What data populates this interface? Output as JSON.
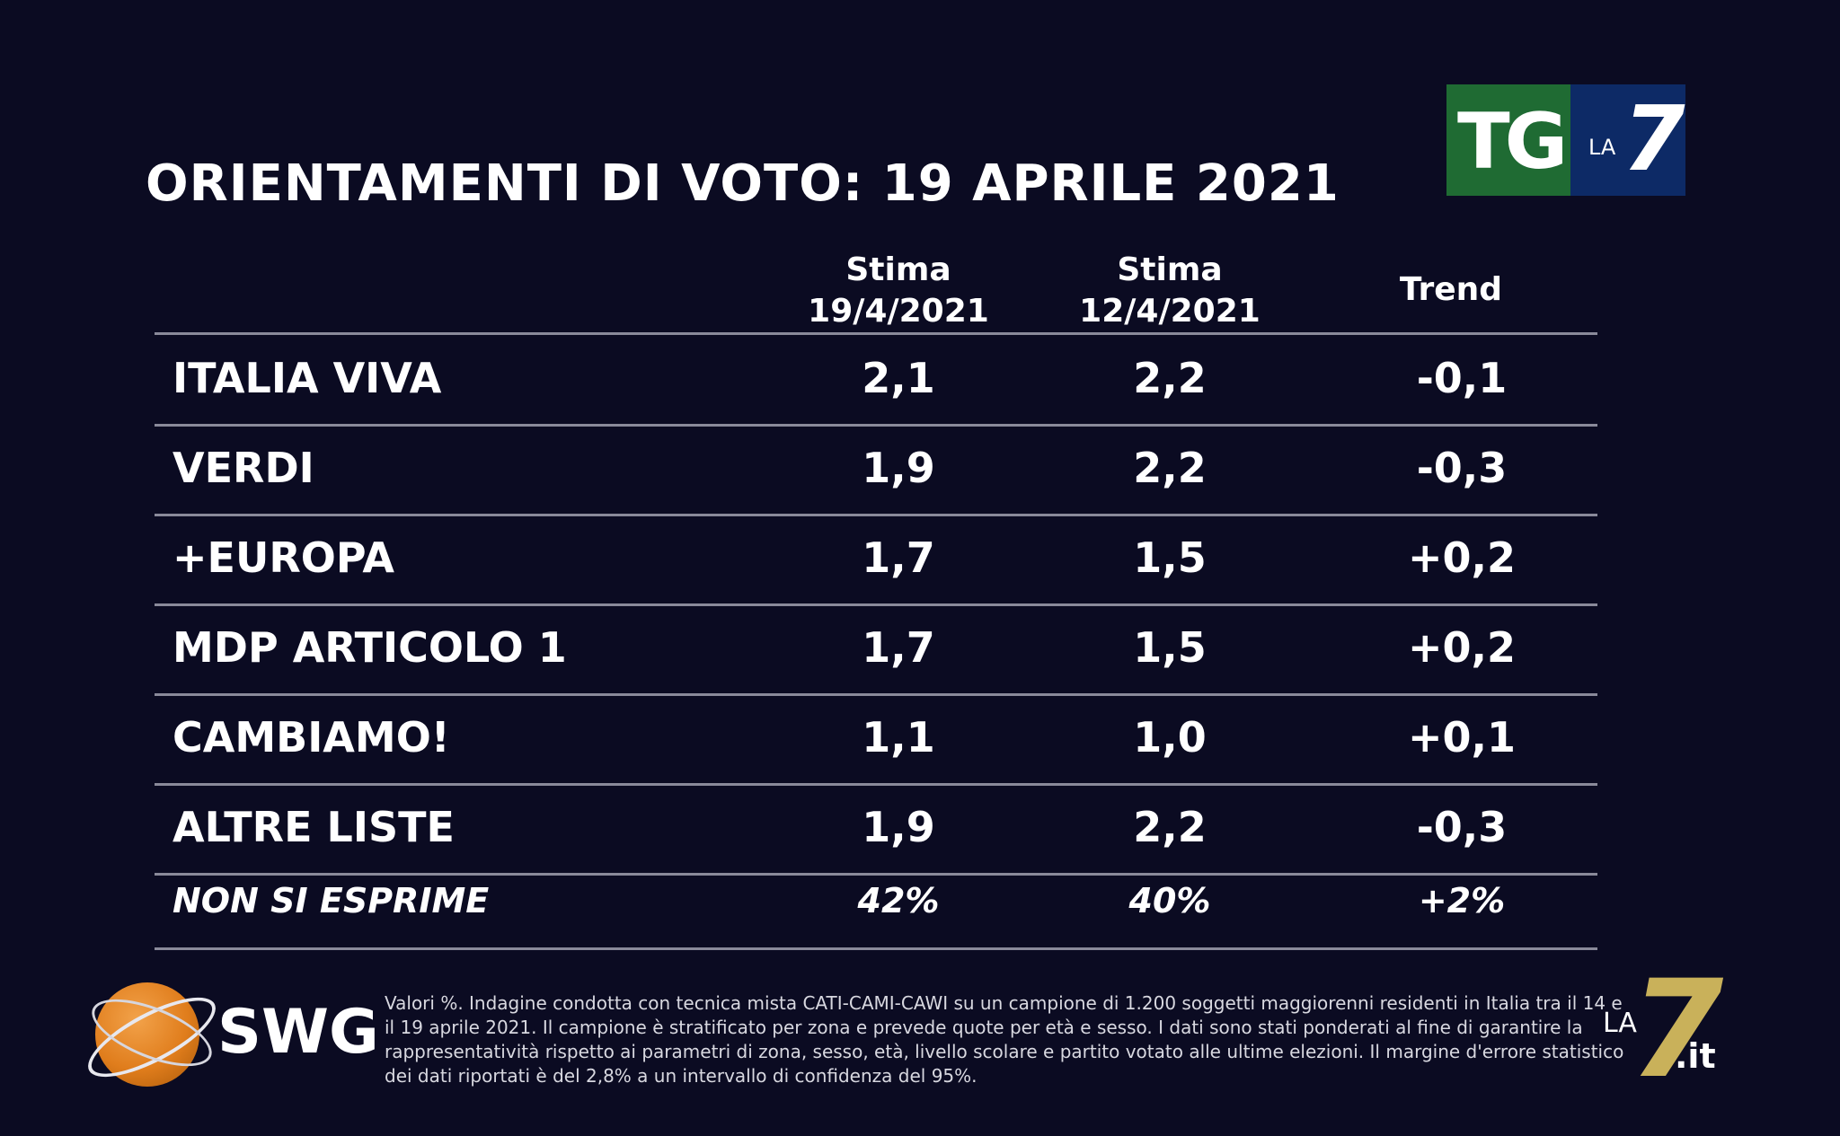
{
  "title": "ORIENTAMENTI DI VOTO: 19 APRILE 2021",
  "logos": {
    "tg": "TG",
    "la": "LA",
    "seven": "7",
    "swg": "SWG",
    "la7it_la": "LA",
    "la7it_seven": "7",
    "la7it_it": ".it"
  },
  "columns": [
    {
      "line1": "Stima",
      "line2": "19/4/2021"
    },
    {
      "line1": "Stima",
      "line2": "12/4/2021"
    },
    {
      "line1": "Trend",
      "line2": ""
    }
  ],
  "chart_data": {
    "type": "table",
    "title": "ORIENTAMENTI DI VOTO: 19 APRILE 2021",
    "headers": [
      "",
      "Stima 19/4/2021",
      "Stima 12/4/2021",
      "Trend"
    ],
    "rows": [
      {
        "party": "ITALIA VIVA",
        "stima_19_4": "2,1",
        "stima_12_4": "2,2",
        "trend": "-0,1"
      },
      {
        "party": "VERDI",
        "stima_19_4": "1,9",
        "stima_12_4": "2,2",
        "trend": "-0,3"
      },
      {
        "party": "+EUROPA",
        "stima_19_4": "1,7",
        "stima_12_4": "1,5",
        "trend": "+0,2"
      },
      {
        "party": "MDP ARTICOLO 1",
        "stima_19_4": "1,7",
        "stima_12_4": "1,5",
        "trend": "+0,2"
      },
      {
        "party": "CAMBIAMO!",
        "stima_19_4": "1,1",
        "stima_12_4": "1,0",
        "trend": "+0,1"
      },
      {
        "party": "ALTRE LISTE",
        "stima_19_4": "1,9",
        "stima_12_4": "2,2",
        "trend": "-0,3"
      }
    ],
    "note_row": {
      "party": "NON SI ESPRIME",
      "stima_19_4": "42%",
      "stima_12_4": "40%",
      "trend": "+2%"
    }
  },
  "footnote": "Valori %. Indagine condotta con tecnica mista CATI-CAMI-CAWI su un campione di 1.200 soggetti maggiorenni residenti in Italia tra il 14 e il 19 aprile 2021. Il campione è stratificato per zona e prevede quote per età e sesso. I dati sono stati ponderati al fine di garantire la rappresentatività rispetto ai parametri di zona, sesso, età, livello scolare e partito votato alle ultime elezioni. Il margine d'errore statistico dei dati riportati è del 2,8% a un intervallo di confidenza del 95%."
}
